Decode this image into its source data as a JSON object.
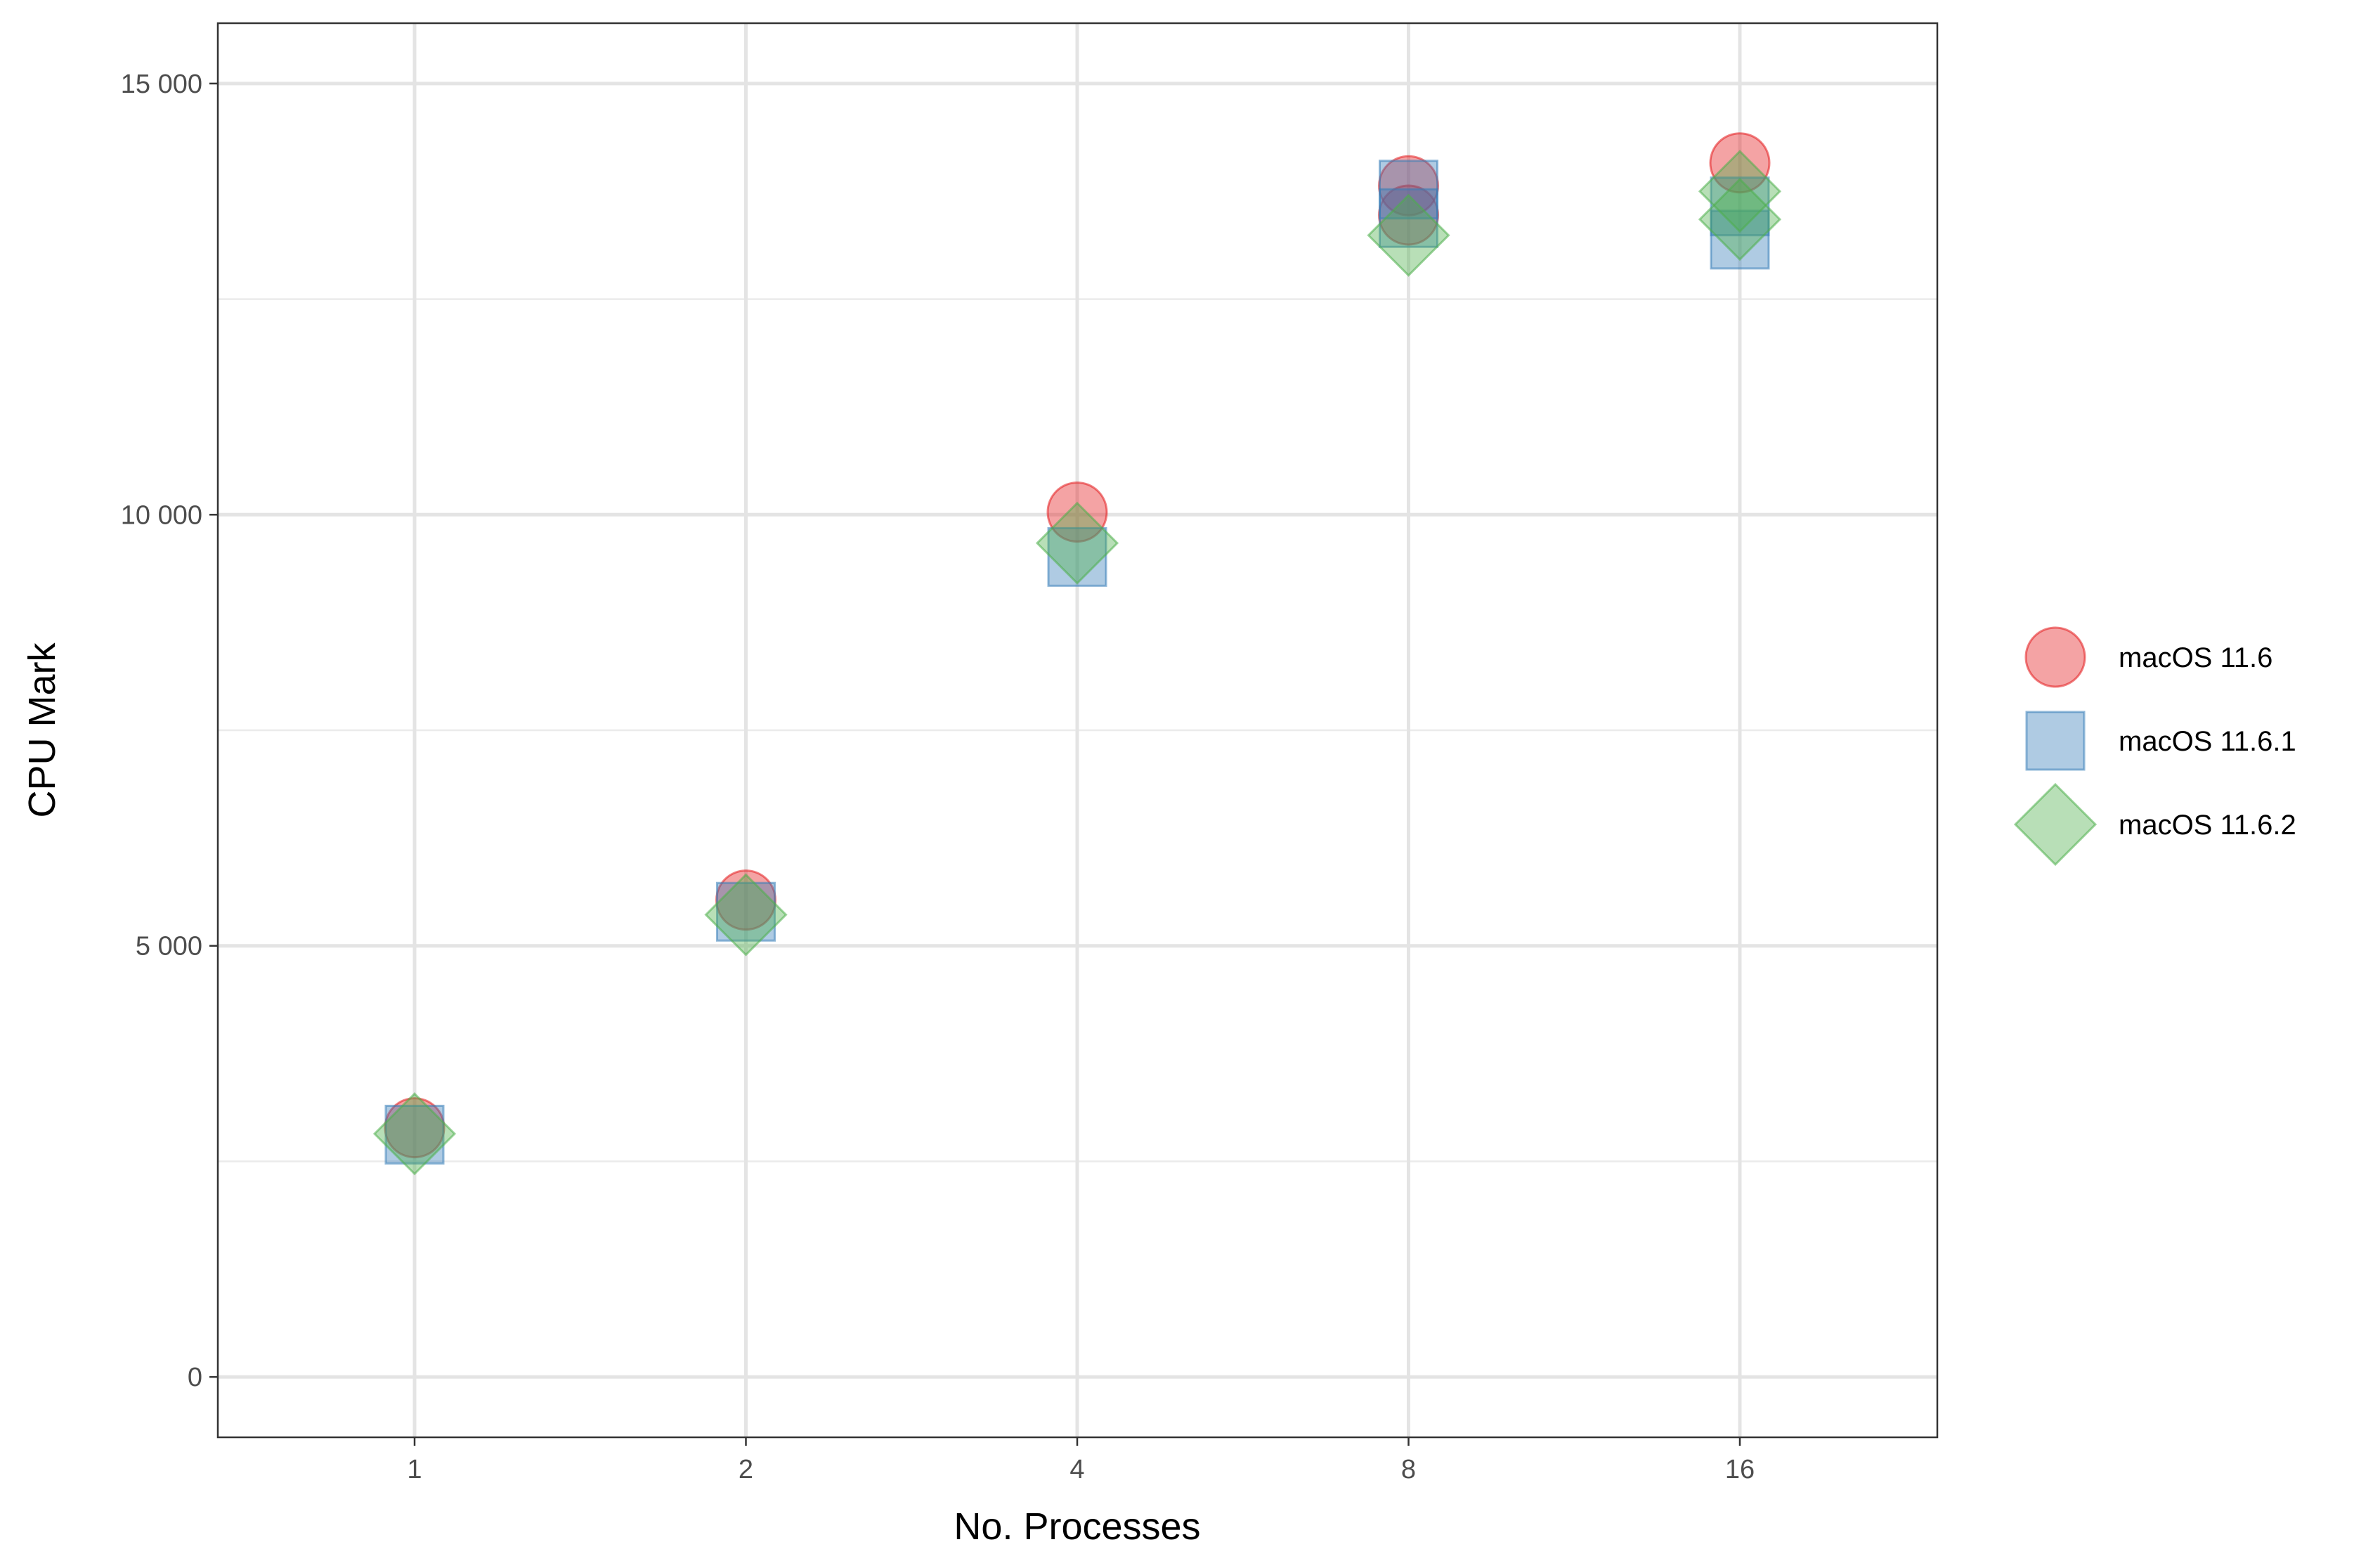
{
  "chart_data": {
    "type": "scatter",
    "title": "",
    "xlabel": "No. Processes",
    "ylabel": "CPU Mark",
    "x_scale": "log2",
    "x_ticks": [
      1,
      2,
      4,
      8,
      16
    ],
    "x_tick_labels": [
      "1",
      "2",
      "4",
      "8",
      "16"
    ],
    "y_ticks": [
      0,
      5000,
      10000,
      15000
    ],
    "y_tick_labels": [
      "0",
      "5 000",
      "10 000",
      "15 000"
    ],
    "ylim": [
      -700,
      15700
    ],
    "grid": true,
    "legend_position": "right",
    "series": [
      {
        "name": "macOS 11.6",
        "shape": "circle",
        "color": "#E41A1C",
        "points": [
          [
            1,
            2890
          ],
          [
            2,
            5530
          ],
          [
            4,
            10030
          ],
          [
            8,
            13815
          ],
          [
            8,
            13475
          ],
          [
            16,
            14080
          ]
        ]
      },
      {
        "name": "macOS 11.6.1",
        "shape": "square",
        "color": "#377EB8",
        "points": [
          [
            1,
            2810
          ],
          [
            2,
            5395
          ],
          [
            4,
            9510
          ],
          [
            8,
            13770
          ],
          [
            8,
            13440
          ],
          [
            16,
            13575
          ],
          [
            16,
            13190
          ]
        ]
      },
      {
        "name": "macOS 11.6.2",
        "shape": "diamond",
        "color": "#4DAF4A",
        "points": [
          [
            1,
            2820
          ],
          [
            2,
            5360
          ],
          [
            4,
            9670
          ],
          [
            8,
            13240
          ],
          [
            16,
            13750
          ],
          [
            16,
            13425
          ]
        ]
      }
    ]
  }
}
